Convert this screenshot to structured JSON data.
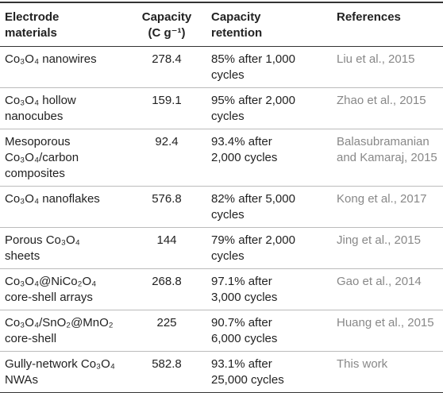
{
  "table": {
    "header": [
      "Electrode materials",
      "Capacity (C g⁻¹)",
      "Capacity retention",
      "References"
    ],
    "rows": [
      [
        "Co₃O₄ nanowires",
        278.4,
        "85% after 1,000 cycles",
        "Liu et al., 2015"
      ],
      [
        "Co₃O₄ hollow nanocubes",
        159.1,
        "95% after 2,000 cycles",
        "Zhao et al., 2015"
      ],
      [
        "Mesoporous Co₃O₄/carbon composites",
        92.4,
        "93.4% after 2,000 cycles",
        "Balasubramanian and Kamaraj, 2015"
      ],
      [
        "Co₃O₄ nanoflakes",
        576.8,
        "82% after 5,000 cycles",
        "Kong et al., 2017"
      ],
      [
        "Porous Co₃O₄ sheets",
        144,
        "79% after 2,000 cycles",
        "Jing et al., 2015"
      ],
      [
        "Co₃O₄@NiCo₂O₄ core-shell arrays",
        268.8,
        "97.1% after 3,000 cycles",
        "Gao et al., 2014"
      ],
      [
        "Co₃O₄/SnO₂@MnO₂ core-shell",
        225,
        "90.7% after 6,000 cycles",
        "Huang et al., 2015"
      ],
      [
        "Gully-network Co₃O₄ NWAs",
        582.8,
        "93.1% after 25,000 cycles",
        "This work"
      ]
    ]
  }
}
